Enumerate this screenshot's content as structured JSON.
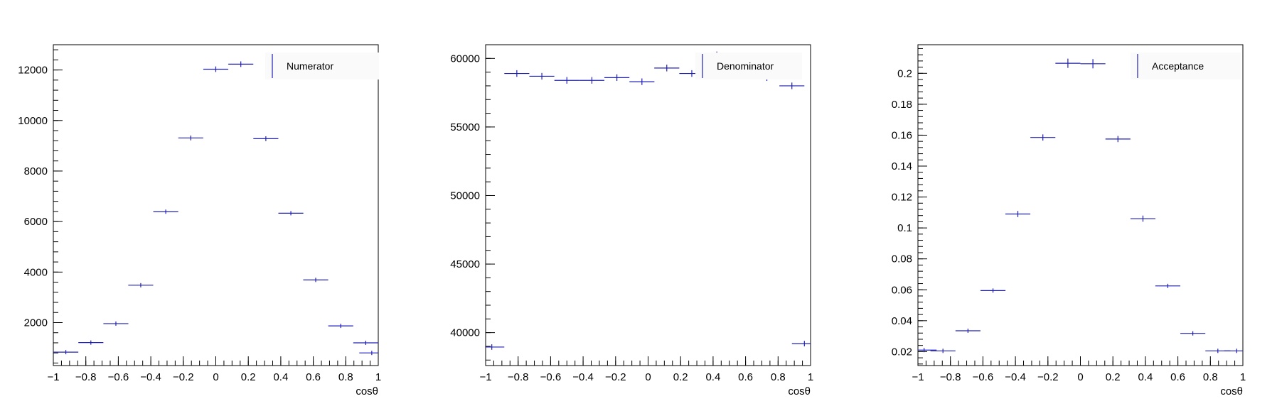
{
  "colors": {
    "marker": "#1f1fb4",
    "axis": "#000000",
    "legend_bg": "#fafafa",
    "background": "#ffffff"
  },
  "chart_data": [
    {
      "type": "scatter",
      "style": "histogram-error-bars",
      "legend": "Numerator",
      "legend_position": "top-right",
      "xlabel": "cosθ",
      "xlim": [
        -1,
        1
      ],
      "ylim": [
        300,
        13000
      ],
      "xticks": [
        -1,
        -0.8,
        -0.6,
        -0.4,
        -0.2,
        0,
        0.2,
        0.4,
        0.6,
        0.8,
        1
      ],
      "xtick_labels": [
        "−1",
        "−0.8",
        "−0.6",
        "−0.4",
        "−0.2",
        "0",
        "0.2",
        "0.4",
        "0.6",
        "0.8",
        "1"
      ],
      "yticks": [
        2000,
        4000,
        6000,
        8000,
        10000,
        12000
      ],
      "ytick_labels": [
        "2000",
        "4000",
        "6000",
        "8000",
        "10000",
        "12000"
      ],
      "yminor_step": 400,
      "bin_width": 0.1538,
      "x": [
        -0.923,
        -0.769,
        -0.615,
        -0.462,
        -0.308,
        -0.154,
        0.0,
        0.154,
        0.308,
        0.462,
        0.615,
        0.769,
        0.923
      ],
      "y": [
        830,
        1210,
        1960,
        3480,
        6390,
        9310,
        12030,
        12230,
        9280,
        6330,
        3690,
        1870,
        1200
      ],
      "yerr": [
        29,
        35,
        44,
        59,
        80,
        96,
        110,
        111,
        96,
        80,
        61,
        43,
        35
      ],
      "x_extra": [
        0.96
      ],
      "y_extra": [
        800
      ]
    },
    {
      "type": "scatter",
      "style": "histogram-error-bars",
      "legend": "Denominator",
      "legend_position": "top-right",
      "xlabel": "cosθ",
      "xlim": [
        -1,
        1
      ],
      "ylim": [
        37600,
        61000
      ],
      "xticks": [
        -1,
        -0.8,
        -0.6,
        -0.4,
        -0.2,
        0,
        0.2,
        0.4,
        0.6,
        0.8,
        1
      ],
      "xtick_labels": [
        "−1",
        "−0.8",
        "−0.6",
        "−0.4",
        "−0.2",
        "0",
        "0.2",
        "0.4",
        "0.6",
        "0.8",
        "1"
      ],
      "yticks": [
        40000,
        45000,
        50000,
        55000,
        60000
      ],
      "ytick_labels": [
        "40000",
        "45000",
        "50000",
        "55000",
        "60000"
      ],
      "yminor_step": 1000,
      "bin_width": 0.1538,
      "x": [
        -0.962,
        -0.808,
        -0.654,
        -0.5,
        -0.346,
        -0.192,
        -0.038,
        0.115,
        0.269,
        0.423,
        0.577,
        0.731,
        0.885,
        0.962
      ],
      "y": [
        38950,
        58900,
        58700,
        58400,
        58400,
        58600,
        58300,
        59300,
        58900,
        59600,
        59200,
        58600,
        58000,
        39200
      ],
      "yerr": [
        200,
        243,
        242,
        242,
        242,
        242,
        241,
        244,
        243,
        900,
        243,
        242,
        241,
        200
      ]
    },
    {
      "type": "scatter",
      "style": "histogram-error-bars",
      "legend": "Acceptance",
      "legend_position": "top-right",
      "xlabel": "cosθ",
      "xlim": [
        -1,
        1
      ],
      "ylim": [
        0.011,
        0.2185
      ],
      "xticks": [
        -1,
        -0.8,
        -0.6,
        -0.4,
        -0.2,
        0,
        0.2,
        0.4,
        0.6,
        0.8,
        1
      ],
      "xtick_labels": [
        "−1",
        "−0.8",
        "−0.6",
        "−0.4",
        "−0.2",
        "0",
        "0.2",
        "0.4",
        "0.6",
        "0.8",
        "1"
      ],
      "yticks": [
        0.02,
        0.04,
        0.06,
        0.08,
        0.1,
        0.12,
        0.14,
        0.16,
        0.18,
        0.2
      ],
      "ytick_labels": [
        "0.02",
        "0.04",
        "0.06",
        "0.08",
        "0.1",
        "0.12",
        "0.14",
        "0.16",
        "0.18",
        "0.2"
      ],
      "yminor_step": 0.004,
      "bin_width": 0.1538,
      "x": [
        -0.962,
        -0.846,
        -0.692,
        -0.538,
        -0.385,
        -0.231,
        -0.077,
        0.077,
        0.231,
        0.385,
        0.538,
        0.692,
        0.846,
        0.962
      ],
      "y": [
        0.021,
        0.0205,
        0.0335,
        0.0595,
        0.109,
        0.1585,
        0.2065,
        0.2062,
        0.1575,
        0.106,
        0.0625,
        0.0318,
        0.0205,
        0.0205
      ],
      "yerr": [
        0.0008,
        0.0007,
        0.001,
        0.0013,
        0.002,
        0.002,
        0.003,
        0.003,
        0.002,
        0.002,
        0.0013,
        0.001,
        0.0007,
        0.0007
      ]
    }
  ]
}
